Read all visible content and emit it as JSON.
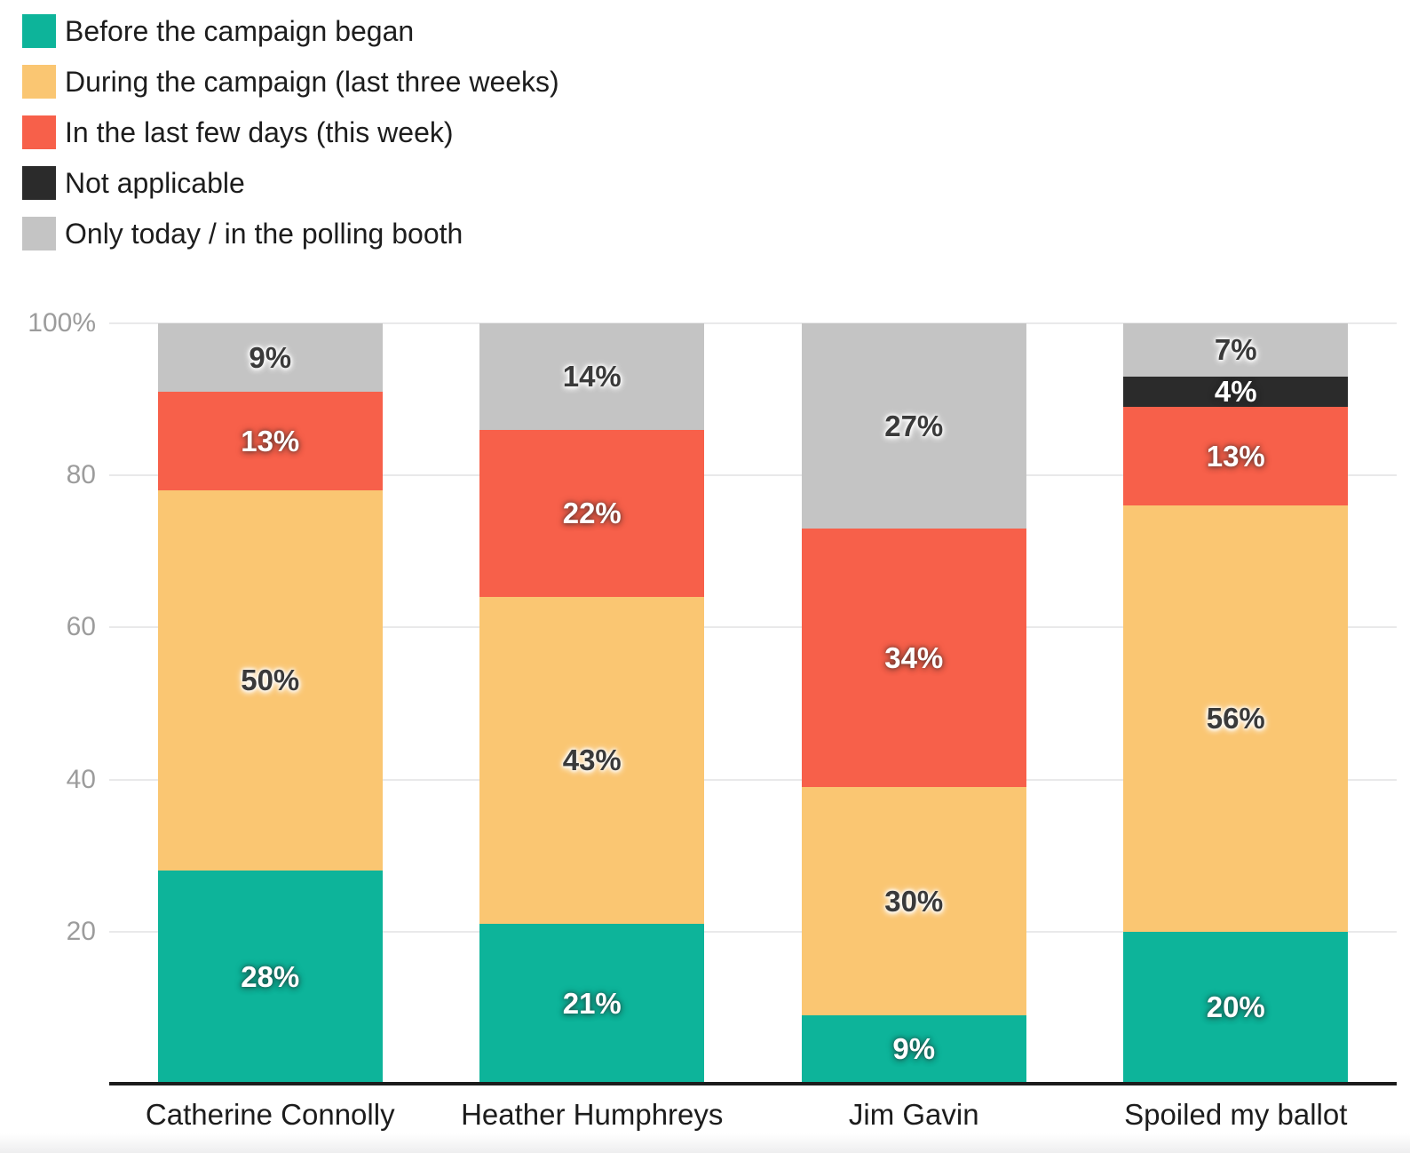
{
  "legend": {
    "items": [
      {
        "label": "Before the campaign began",
        "color": "#0db49a"
      },
      {
        "label": "During the campaign (last three weeks)",
        "color": "#fac672"
      },
      {
        "label": "In the last few days (this week)",
        "color": "#f7604a"
      },
      {
        "label": "Not applicable",
        "color": "#2b2b2b"
      },
      {
        "label": "Only today / in the polling booth",
        "color": "#c4c4c4"
      }
    ]
  },
  "chart_data": {
    "type": "bar",
    "stacked": true,
    "percent": true,
    "value_suffix": "%",
    "title": "",
    "xlabel": "",
    "ylabel": "",
    "legend_position": "top-left",
    "grid": true,
    "categories": [
      "Catherine Connolly",
      "Heather Humphreys",
      "Jim Gavin",
      "Spoiled my ballot"
    ],
    "series": [
      {
        "name": "Before the campaign began",
        "color": "#0db49a",
        "label_style": "light",
        "values": [
          28,
          21,
          9,
          20
        ]
      },
      {
        "name": "During the campaign (last three weeks)",
        "color": "#fac672",
        "label_style": "dark",
        "values": [
          50,
          43,
          30,
          56
        ]
      },
      {
        "name": "In the last few days (this week)",
        "color": "#f7604a",
        "label_style": "light",
        "values": [
          13,
          22,
          34,
          13
        ]
      },
      {
        "name": "Not applicable",
        "color": "#2b2b2b",
        "label_style": "light",
        "values": [
          0,
          0,
          0,
          4
        ]
      },
      {
        "name": "Only today / in the polling booth",
        "color": "#c4c4c4",
        "label_style": "dark",
        "values": [
          9,
          14,
          27,
          7
        ]
      }
    ],
    "y_axis": {
      "min": 0,
      "max": 100,
      "tick_values": [
        100,
        80,
        60,
        40,
        20
      ],
      "tick_labels": [
        "100%",
        "80",
        "60",
        "40",
        "20"
      ]
    }
  }
}
